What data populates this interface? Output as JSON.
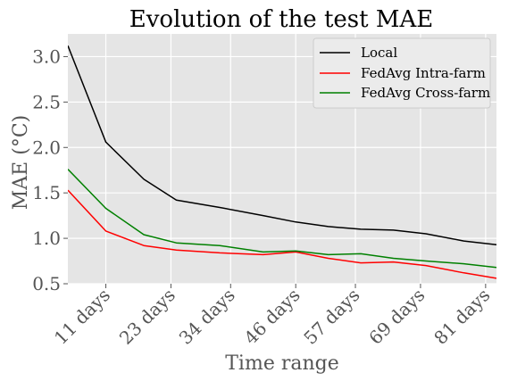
{
  "chart_data": {
    "type": "line",
    "title": "Evolution of the test MAE",
    "xlabel": "Time range",
    "ylabel": "MAE (°C)",
    "x": [
      4,
      11,
      18,
      24,
      32,
      40,
      46,
      52,
      58,
      64,
      70,
      77,
      83
    ],
    "xlim": [
      4,
      83
    ],
    "ylim": [
      0.5,
      3.25
    ],
    "xtick_values": [
      11,
      23,
      34,
      46,
      57,
      69,
      81
    ],
    "xtick_labels": [
      "11 days",
      "23 days",
      "34 days",
      "46 days",
      "57 days",
      "69 days",
      "81 days"
    ],
    "ytick_values": [
      0.5,
      1.0,
      1.5,
      2.0,
      2.5,
      3.0
    ],
    "ytick_labels": [
      "0.5",
      "1.0",
      "1.5",
      "2.0",
      "2.5",
      "3.0"
    ],
    "grid": true,
    "legend_position": "top-right",
    "plot_background": "#e5e5e5",
    "series": [
      {
        "name": "Local",
        "color": "#000000",
        "values": [
          3.12,
          2.06,
          1.65,
          1.42,
          1.34,
          1.25,
          1.18,
          1.13,
          1.1,
          1.09,
          1.05,
          0.97,
          0.93
        ]
      },
      {
        "name": "FedAvg Intra-farm",
        "color": "#ff0000",
        "values": [
          1.53,
          1.08,
          0.92,
          0.87,
          0.84,
          0.82,
          0.85,
          0.78,
          0.73,
          0.74,
          0.7,
          0.62,
          0.56
        ]
      },
      {
        "name": "FedAvg Cross-farm",
        "color": "#008000",
        "values": [
          1.76,
          1.33,
          1.04,
          0.95,
          0.92,
          0.85,
          0.86,
          0.82,
          0.83,
          0.78,
          0.75,
          0.72,
          0.68
        ]
      }
    ]
  }
}
